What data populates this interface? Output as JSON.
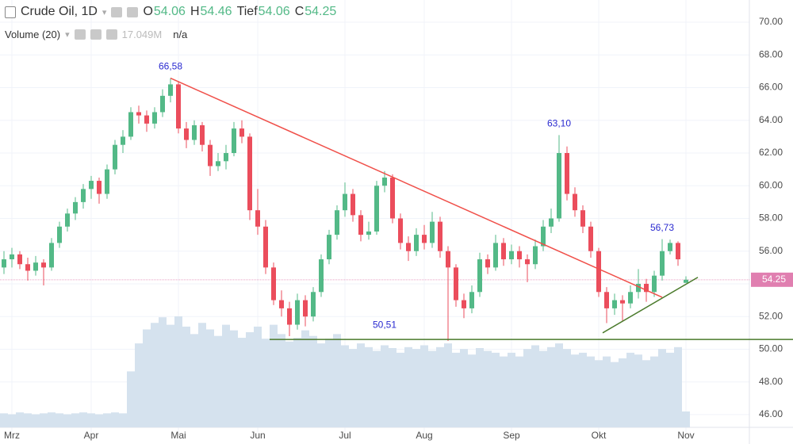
{
  "chart_data": {
    "type": "candlestick",
    "title": "Crude Oil, 1D",
    "ohlc_labels": [
      "O",
      "H",
      "Tief",
      "C"
    ],
    "categories": [
      null,
      "Mrz",
      null,
      null,
      null,
      null,
      null,
      null,
      null,
      null,
      null,
      "Apr",
      null,
      null,
      null,
      null,
      null,
      null,
      null,
      null,
      null,
      null,
      "Mai",
      null,
      null,
      null,
      null,
      null,
      null,
      null,
      null,
      null,
      "Jun",
      null,
      null,
      null,
      null,
      null,
      null,
      null,
      null,
      null,
      null,
      "Jul",
      null,
      null,
      null,
      null,
      null,
      null,
      null,
      null,
      null,
      "Aug",
      null,
      null,
      null,
      null,
      null,
      null,
      null,
      null,
      null,
      null,
      "Sep",
      null,
      null,
      null,
      null,
      null,
      null,
      null,
      null,
      null,
      null,
      "Okt",
      null,
      null,
      null,
      null,
      null,
      null,
      null,
      null,
      null,
      null,
      "Nov"
    ],
    "candles": [
      [
        55.0,
        56.0,
        54.6,
        55.5
      ],
      [
        55.5,
        56.2,
        55.0,
        55.8
      ],
      [
        55.8,
        56.0,
        54.9,
        55.2
      ],
      [
        55.2,
        55.6,
        54.2,
        54.8
      ],
      [
        54.8,
        55.7,
        54.5,
        55.3
      ],
      [
        55.3,
        55.5,
        53.9,
        55.0
      ],
      [
        55.0,
        56.8,
        54.8,
        56.5
      ],
      [
        56.5,
        57.8,
        56.2,
        57.5
      ],
      [
        57.5,
        58.6,
        57.2,
        58.3
      ],
      [
        58.3,
        59.3,
        57.9,
        59.0
      ],
      [
        59.0,
        60.1,
        58.6,
        59.8
      ],
      [
        59.8,
        60.6,
        59.2,
        60.3
      ],
      [
        60.3,
        60.5,
        58.9,
        59.5
      ],
      [
        59.5,
        61.3,
        59.2,
        61.0
      ],
      [
        61.0,
        62.8,
        60.7,
        62.5
      ],
      [
        62.5,
        63.4,
        62.0,
        63.0
      ],
      [
        63.0,
        64.8,
        62.8,
        64.5
      ],
      [
        64.5,
        64.9,
        63.8,
        64.3
      ],
      [
        64.3,
        64.6,
        63.3,
        63.8
      ],
      [
        63.8,
        64.8,
        63.5,
        64.5
      ],
      [
        64.5,
        65.9,
        64.2,
        65.5
      ],
      [
        65.5,
        66.58,
        65.1,
        66.2
      ],
      [
        66.2,
        66.4,
        63.2,
        63.5
      ],
      [
        63.5,
        63.9,
        62.3,
        62.8
      ],
      [
        62.8,
        64.0,
        62.5,
        63.7
      ],
      [
        63.7,
        63.9,
        62.1,
        62.5
      ],
      [
        62.5,
        62.8,
        60.6,
        61.2
      ],
      [
        61.2,
        62.0,
        60.9,
        61.5
      ],
      [
        61.5,
        62.5,
        61.0,
        62.0
      ],
      [
        62.0,
        63.9,
        61.8,
        63.5
      ],
      [
        63.5,
        64.0,
        62.6,
        63.0
      ],
      [
        63.0,
        63.2,
        57.9,
        58.5
      ],
      [
        58.5,
        59.8,
        57.0,
        57.5
      ],
      [
        57.5,
        57.9,
        54.6,
        55.0
      ],
      [
        55.0,
        55.3,
        52.7,
        53.0
      ],
      [
        53.0,
        53.6,
        52.0,
        52.5
      ],
      [
        52.5,
        52.9,
        50.8,
        51.5
      ],
      [
        51.5,
        53.4,
        51.2,
        53.0
      ],
      [
        53.0,
        53.3,
        51.4,
        52.0
      ],
      [
        52.0,
        53.8,
        51.7,
        53.5
      ],
      [
        53.5,
        55.8,
        53.2,
        55.5
      ],
      [
        55.5,
        57.3,
        55.2,
        57.0
      ],
      [
        57.0,
        58.8,
        56.7,
        58.5
      ],
      [
        58.5,
        60.2,
        58.1,
        59.5
      ],
      [
        59.5,
        59.8,
        57.8,
        58.2
      ],
      [
        58.2,
        58.5,
        56.6,
        57.0
      ],
      [
        57.0,
        57.8,
        56.7,
        57.2
      ],
      [
        57.2,
        60.3,
        57.0,
        60.0
      ],
      [
        60.0,
        60.9,
        59.6,
        60.5
      ],
      [
        60.5,
        60.7,
        57.7,
        58.0
      ],
      [
        58.0,
        58.3,
        56.1,
        56.5
      ],
      [
        56.5,
        56.9,
        55.4,
        56.0
      ],
      [
        56.0,
        57.4,
        55.7,
        57.0
      ],
      [
        57.0,
        57.6,
        56.1,
        56.5
      ],
      [
        56.5,
        58.4,
        56.2,
        57.8
      ],
      [
        57.8,
        58.1,
        55.6,
        56.0
      ],
      [
        56.0,
        56.3,
        50.51,
        55.0
      ],
      [
        55.0,
        55.2,
        52.6,
        53.0
      ],
      [
        53.0,
        53.4,
        51.9,
        52.5
      ],
      [
        52.5,
        53.9,
        52.2,
        53.5
      ],
      [
        53.5,
        55.9,
        53.2,
        55.5
      ],
      [
        55.5,
        55.8,
        54.6,
        55.0
      ],
      [
        55.0,
        57.0,
        54.8,
        56.5
      ],
      [
        56.5,
        56.8,
        55.1,
        55.5
      ],
      [
        55.5,
        56.4,
        55.2,
        56.0
      ],
      [
        56.0,
        56.3,
        55.0,
        55.5
      ],
      [
        55.5,
        55.8,
        54.1,
        55.2
      ],
      [
        55.2,
        56.7,
        54.9,
        56.3
      ],
      [
        56.3,
        57.9,
        56.0,
        57.5
      ],
      [
        57.5,
        58.6,
        57.1,
        58.0
      ],
      [
        58.0,
        63.1,
        57.8,
        62.0
      ],
      [
        62.0,
        62.4,
        59.1,
        59.5
      ],
      [
        59.5,
        59.9,
        58.1,
        58.5
      ],
      [
        58.5,
        58.8,
        57.1,
        57.5
      ],
      [
        57.5,
        57.8,
        55.6,
        56.0
      ],
      [
        56.0,
        56.2,
        53.2,
        53.5
      ],
      [
        53.5,
        53.8,
        51.6,
        52.5
      ],
      [
        52.5,
        53.4,
        52.1,
        53.0
      ],
      [
        53.0,
        53.3,
        51.7,
        52.8
      ],
      [
        52.8,
        53.9,
        52.5,
        53.5
      ],
      [
        53.5,
        54.9,
        53.1,
        54.0
      ],
      [
        54.0,
        54.3,
        52.9,
        53.5
      ],
      [
        53.5,
        54.8,
        53.2,
        54.5
      ],
      [
        54.5,
        56.73,
        54.2,
        56.0
      ],
      [
        56.0,
        56.7,
        55.8,
        56.5
      ],
      [
        56.5,
        56.6,
        55.1,
        55.5
      ],
      [
        54.06,
        54.46,
        54.06,
        54.25
      ]
    ],
    "up_color": "#53b987",
    "down_color": "#eb4d5c",
    "volume": {
      "name": "Volume (20)",
      "color": "#d5e2ee",
      "current_label": "17.049M",
      "status": "n/a",
      "values": [
        15,
        14,
        16,
        15,
        14,
        15,
        16,
        15,
        14,
        15,
        16,
        15,
        14,
        15,
        16,
        15,
        60,
        90,
        105,
        112,
        118,
        110,
        119,
        108,
        100,
        112,
        105,
        98,
        110,
        104,
        96,
        102,
        108,
        95,
        110,
        100,
        92,
        96,
        104,
        98,
        90,
        95,
        100,
        88,
        84,
        90,
        86,
        82,
        88,
        85,
        80,
        86,
        84,
        88,
        82,
        86,
        90,
        80,
        84,
        78,
        85,
        82,
        80,
        76,
        80,
        76,
        84,
        88,
        82,
        86,
        90,
        84,
        78,
        80,
        76,
        72,
        76,
        70,
        74,
        80,
        78,
        72,
        76,
        84,
        80,
        86,
        17.049
      ]
    },
    "peaks": [
      {
        "label": "66,58",
        "index": 21,
        "value": 66.58
      },
      {
        "label": "63,10",
        "index": 70,
        "value": 63.1
      },
      {
        "label": "56,73",
        "index": 83,
        "value": 56.73
      }
    ],
    "lines": [
      {
        "color": "#f0504a",
        "from": [
          21,
          66.58
        ],
        "to": [
          83,
          53.18
        ]
      },
      {
        "color": "#4a7a2b",
        "from": [
          33.5,
          50.6
        ],
        "to": [
          99.5,
          50.6
        ],
        "label": "50,51",
        "label_index": 48
      },
      {
        "color": "#4a7a2b",
        "from": [
          75.5,
          51.0
        ],
        "to": [
          87.5,
          54.4
        ]
      }
    ],
    "ylim": [
      44.93,
      71.36
    ],
    "yticks": [
      {
        "value": 46,
        "label": "46.00"
      },
      {
        "value": 48,
        "label": "48.00"
      },
      {
        "value": 50,
        "label": "50.00"
      },
      {
        "value": 52,
        "label": "52.00"
      },
      {
        "value": 54,
        "label": "54.00"
      },
      {
        "value": 56,
        "label": "56.00"
      },
      {
        "value": 58,
        "label": "58.00"
      },
      {
        "value": 60,
        "label": "60.00"
      },
      {
        "value": 62,
        "label": "62.00"
      },
      {
        "value": 64,
        "label": "64.00"
      },
      {
        "value": 66,
        "label": "66.00"
      },
      {
        "value": 68,
        "label": "68.00"
      },
      {
        "value": 70,
        "label": "70.00"
      }
    ],
    "grid": true
  }
}
